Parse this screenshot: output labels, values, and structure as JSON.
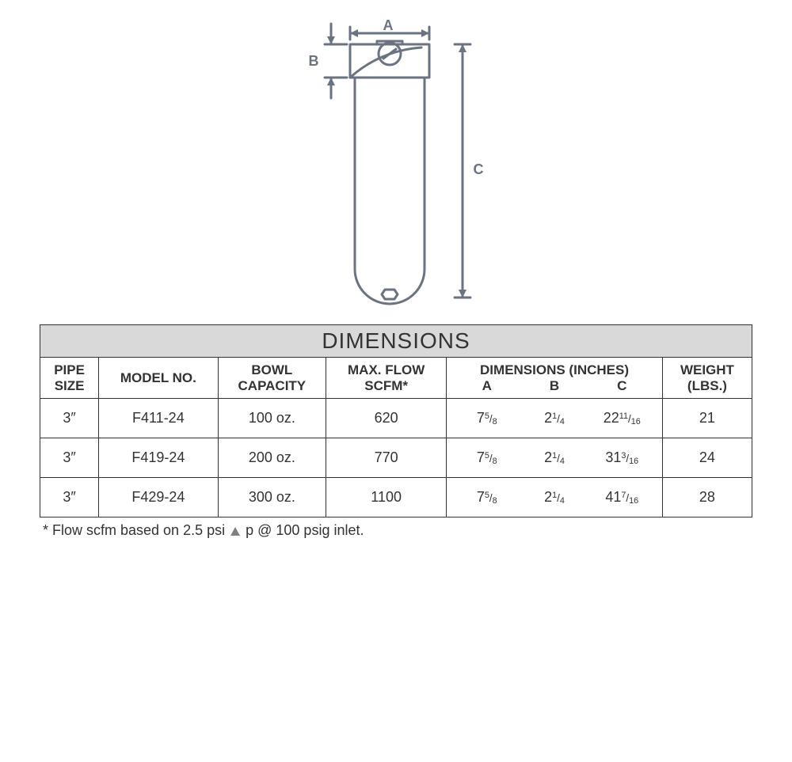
{
  "diagram": {
    "labels": {
      "A": "A",
      "B": "B",
      "C": "C"
    },
    "stroke_color": "#6b7280",
    "stroke_width": 3,
    "label_font_size": 18,
    "background": "#ffffff"
  },
  "table": {
    "title": "DIMENSIONS",
    "title_bg": "#d9d9d9",
    "border_color": "#333333",
    "text_color": "#333333",
    "title_fontsize": 28,
    "header_fontsize": 17,
    "cell_fontsize": 18,
    "columns": {
      "pipe_size": "PIPE SIZE",
      "model_no": "MODEL NO.",
      "bowl_capacity": "BOWL CAPACITY",
      "max_flow": "MAX. FLOW SCFM*",
      "dimensions_group": "DIMENSIONS (INCHES)",
      "dim_a": "A",
      "dim_b": "B",
      "dim_c": "C",
      "weight": "WEIGHT (LBS.)"
    },
    "rows": [
      {
        "pipe_size": "3″",
        "model_no": "F411-24",
        "bowl_capacity": "100 oz.",
        "max_flow": "620",
        "dim_a": {
          "whole": "7",
          "num": "5",
          "den": "8"
        },
        "dim_b": {
          "whole": "2",
          "num": "1",
          "den": "4"
        },
        "dim_c": {
          "whole": "22",
          "num": "11",
          "den": "16"
        },
        "weight": "21"
      },
      {
        "pipe_size": "3″",
        "model_no": "F419-24",
        "bowl_capacity": "200 oz.",
        "max_flow": "770",
        "dim_a": {
          "whole": "7",
          "num": "5",
          "den": "8"
        },
        "dim_b": {
          "whole": "2",
          "num": "1",
          "den": "4"
        },
        "dim_c": {
          "whole": "31",
          "num": "3",
          "den": "16"
        },
        "weight": "24"
      },
      {
        "pipe_size": "3″",
        "model_no": "F429-24",
        "bowl_capacity": "300 oz.",
        "max_flow": "1100",
        "dim_a": {
          "whole": "7",
          "num": "5",
          "den": "8"
        },
        "dim_b": {
          "whole": "2",
          "num": "1",
          "den": "4"
        },
        "dim_c": {
          "whole": "41",
          "num": "7",
          "den": "16"
        },
        "weight": "28"
      }
    ]
  },
  "footnote": {
    "prefix": "* Flow scfm based on 2.5 psi ",
    "suffix": " p @ 100 psig inlet.",
    "triangle_color": "#808080",
    "fontsize": 18
  }
}
